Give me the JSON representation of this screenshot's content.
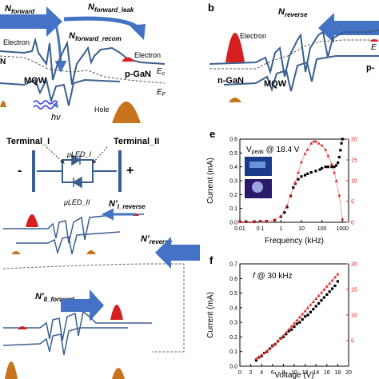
{
  "panel_a": {
    "n_forward": "N",
    "n_forward_sub": "forward",
    "n_forward_leak": "N",
    "n_forward_leak_sub": "forward_leak",
    "n_forward_recom": "N",
    "n_forward_recom_sub": "forward_recom",
    "electron_left": "Electron",
    "n_gan_fragment": "N",
    "mqw": "MQW",
    "electron_label": "Electron",
    "p_gan": "p-GaN",
    "ec": "E",
    "ec_sub": "c",
    "ef": "E",
    "ef_sub": "F",
    "hv": "hν",
    "hole": "Hole"
  },
  "panel_b": {
    "letter": "b",
    "n_reverse": "N",
    "n_reverse_sub": "reverse",
    "electron": "Electron",
    "n_gan": "n-GaN",
    "mqw": "MQW",
    "p_fragment": "p-",
    "e_fragment": "E"
  },
  "panel_c": {
    "terminal_1": "Terminal_I",
    "terminal_2": "Terminal_II",
    "minus": "-",
    "plus": "+",
    "led_1": "μLED_I",
    "led_2": "μLED_II"
  },
  "panel_d": {
    "n_i_reverse": "N'",
    "n_i_reverse_sub": "I_reverse",
    "n_reverse_prime": "N'",
    "n_reverse_prime_sub": "reverse",
    "n_ii_forward": "N'",
    "n_ii_forward_sub": "II_forward"
  },
  "panel_e": {
    "letter": "e",
    "annotation": "V",
    "annotation_sub": "peak",
    "annotation_tail": " @ 18.4 V"
  },
  "panel_f": {
    "letter": "f",
    "annotation": "f",
    "annotation_tail": " @ 30 kHz"
  },
  "colors": {
    "band_blue": "#3a5f8f",
    "arrow_blue": "#4472c4",
    "electron_red": "#d62020",
    "hole_orange": "#c8741e",
    "series_black": "#000000",
    "series_red": "#e02020"
  },
  "chart_data": [
    {
      "panel": "e",
      "type": "scatter",
      "title": "",
      "xlabel": "Frequency (kHz)",
      "ylabel": "Current (mA)",
      "y2label": "",
      "xscale": "log",
      "xlim": [
        0.01,
        2000
      ],
      "ylim": [
        0.0,
        0.6
      ],
      "y2lim": [
        0,
        20
      ],
      "x_ticks": [
        "0.01",
        "0.1",
        "1",
        "10",
        "100",
        "1000"
      ],
      "y_ticks": [
        "0.0",
        "0.1",
        "0.2",
        "0.3",
        "0.4",
        "0.5",
        "0.6"
      ],
      "y2_ticks": [
        "0",
        "5",
        "10",
        "15",
        "20"
      ],
      "grid": false,
      "series": [
        {
          "axis": "left",
          "color": "#000000",
          "marker": "square",
          "x": [
            0.01,
            0.02,
            0.05,
            0.1,
            0.2,
            0.5,
            1,
            1.5,
            2,
            3,
            4,
            5,
            7,
            10,
            15,
            20,
            30,
            50,
            80,
            100,
            150,
            200,
            300,
            400,
            500,
            600,
            700,
            800,
            900,
            1000
          ],
          "y": [
            0.005,
            0.005,
            0.005,
            0.006,
            0.008,
            0.015,
            0.04,
            0.07,
            0.11,
            0.19,
            0.25,
            0.28,
            0.31,
            0.33,
            0.34,
            0.35,
            0.36,
            0.37,
            0.38,
            0.39,
            0.4,
            0.4,
            0.4,
            0.4,
            0.41,
            0.43,
            0.47,
            0.52,
            0.57,
            0.6
          ]
        },
        {
          "axis": "right",
          "color": "#e02020",
          "marker": "triangle",
          "x": [
            0.01,
            0.02,
            0.05,
            0.1,
            0.2,
            0.5,
            1,
            2,
            3,
            5,
            7,
            10,
            15,
            20,
            30,
            40,
            50,
            70,
            100,
            150,
            200,
            300,
            400,
            500,
            700,
            1000
          ],
          "y": [
            0.1,
            0.1,
            0.1,
            0.2,
            0.3,
            0.6,
            1.5,
            4,
            6.5,
            9.5,
            12,
            14.5,
            16.5,
            17.5,
            19,
            19.5,
            19.5,
            19,
            18.5,
            17.5,
            16,
            14,
            12,
            10,
            6.5,
            0.8
          ]
        }
      ]
    },
    {
      "panel": "f",
      "type": "scatter",
      "title": "",
      "xlabel": "Voltage (V)",
      "ylabel": "Current (mA)",
      "xlim": [
        0,
        20
      ],
      "ylim": [
        0.0,
        0.7
      ],
      "y2lim": [
        0,
        20
      ],
      "x_ticks": [
        "0",
        "2",
        "4",
        "6",
        "8",
        "10",
        "12",
        "14",
        "16",
        "18",
        "20"
      ],
      "y_ticks": [
        "0.0",
        "0.1",
        "0.2",
        "0.3",
        "0.4",
        "0.5",
        "0.6",
        "0.7"
      ],
      "y2_ticks": [
        "5",
        "10",
        "15",
        "20"
      ],
      "grid": false,
      "series": [
        {
          "axis": "left",
          "color": "#000000",
          "marker": "square",
          "x": [
            3,
            3.5,
            4,
            4.5,
            5,
            5.5,
            6,
            6.5,
            7,
            7.5,
            8,
            8.5,
            9,
            9.5,
            10,
            10.5,
            11,
            11.5,
            12,
            12.5,
            13,
            13.5,
            14,
            14.5,
            15,
            15.5,
            16,
            16.5,
            17,
            17.5,
            18
          ],
          "y": [
            0.04,
            0.06,
            0.07,
            0.09,
            0.1,
            0.12,
            0.14,
            0.15,
            0.17,
            0.19,
            0.2,
            0.22,
            0.24,
            0.25,
            0.27,
            0.29,
            0.3,
            0.32,
            0.34,
            0.35,
            0.37,
            0.39,
            0.41,
            0.43,
            0.45,
            0.47,
            0.49,
            0.51,
            0.53,
            0.55,
            0.58
          ]
        },
        {
          "axis": "right",
          "color": "#e02020",
          "marker": "triangle",
          "x": [
            3,
            3.5,
            4,
            4.5,
            5,
            5.5,
            6,
            6.5,
            7,
            7.5,
            8,
            8.5,
            9,
            9.5,
            10,
            10.5,
            11,
            11.5,
            12,
            12.5,
            13,
            13.5,
            14,
            14.5,
            15,
            15.5,
            16,
            16.5,
            17,
            17.5,
            18
          ],
          "y": [
            1.5,
            1.8,
            2.2,
            2.6,
            3.0,
            3.4,
            3.9,
            4.4,
            4.9,
            5.4,
            6.0,
            6.6,
            7.2,
            7.8,
            8.4,
            9.0,
            9.6,
            10.2,
            10.8,
            11.4,
            12.0,
            12.6,
            13.2,
            13.8,
            14.4,
            15.0,
            15.6,
            16.2,
            16.8,
            17.4,
            18.0
          ]
        }
      ]
    }
  ]
}
